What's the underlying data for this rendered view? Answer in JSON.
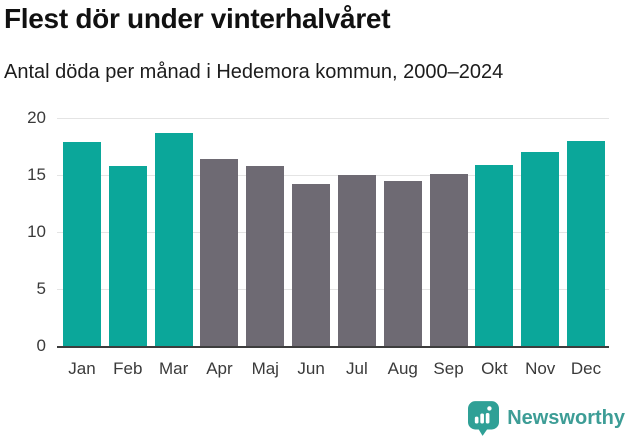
{
  "header": {
    "title": "Flest dör under vinterhalvåret",
    "subtitle": "Antal döda per månad i Hedemora kommun, 2000–2024"
  },
  "chart_data": {
    "type": "bar",
    "title": "Flest dör under vinterhalvåret",
    "subtitle": "Antal döda per månad i Hedemora kommun, 2000–2024",
    "categories": [
      "Jan",
      "Feb",
      "Mar",
      "Apr",
      "Maj",
      "Jun",
      "Jul",
      "Aug",
      "Sep",
      "Okt",
      "Nov",
      "Dec"
    ],
    "values": [
      17.9,
      15.8,
      18.7,
      16.4,
      15.8,
      14.2,
      15.0,
      14.5,
      15.1,
      15.9,
      17.0,
      18.0
    ],
    "highlighted_categories": [
      "Jan",
      "Feb",
      "Mar",
      "Okt",
      "Nov",
      "Dec"
    ],
    "series_colors": [
      "#0ba79a",
      "#0ba79a",
      "#0ba79a",
      "#6e6a73",
      "#6e6a73",
      "#6e6a73",
      "#6e6a73",
      "#6e6a73",
      "#6e6a73",
      "#0ba79a",
      "#0ba79a",
      "#0ba79a"
    ],
    "xlabel": "",
    "ylabel": "",
    "ylim": [
      0,
      20
    ],
    "yticks": [
      0,
      5,
      10,
      15,
      20
    ],
    "grid": "horizontal",
    "legend": "none",
    "colors": {
      "highlight": "#0ba79a",
      "neutral": "#6e6a73",
      "gridline": "#e4e4e4",
      "axis_line": "#3d3d3d",
      "tick_label": "#3a3a3a"
    }
  },
  "footer": {
    "brand_label": "Newsworthy",
    "brand_color": "#3d9d96",
    "logo_icon": "newsworthy-speech-bubble-bar-chart",
    "logo_color": "#2fa096"
  }
}
